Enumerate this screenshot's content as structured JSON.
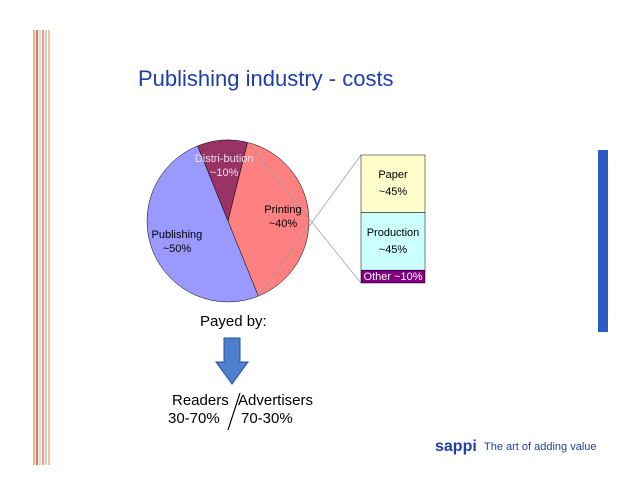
{
  "chart_data": {
    "type": "pie",
    "title": "Publishing industry - costs",
    "categories": [
      "Publishing",
      "Distri-bution",
      "Printing"
    ],
    "values": [
      50,
      10,
      40
    ],
    "value_labels": [
      "~50%",
      "~10%",
      "~40%"
    ],
    "colors": [
      "#9999ff",
      "#993366",
      "#ff8080"
    ],
    "breakdown": {
      "categories": [
        "Paper",
        "Production",
        "Other"
      ],
      "values": [
        45,
        45,
        10
      ],
      "value_labels": [
        "~45%",
        "~45%",
        "~10%"
      ],
      "colors": [
        "#ffffcc",
        "#ccffff",
        "#800080"
      ]
    }
  },
  "payment": {
    "heading": "Payed by:",
    "left": {
      "label": "Readers",
      "share": "30-70%"
    },
    "right": {
      "label": "Advertisers",
      "share": "70-30%"
    }
  },
  "footer": {
    "brand": "sappi",
    "tagline": "The art of adding value"
  }
}
